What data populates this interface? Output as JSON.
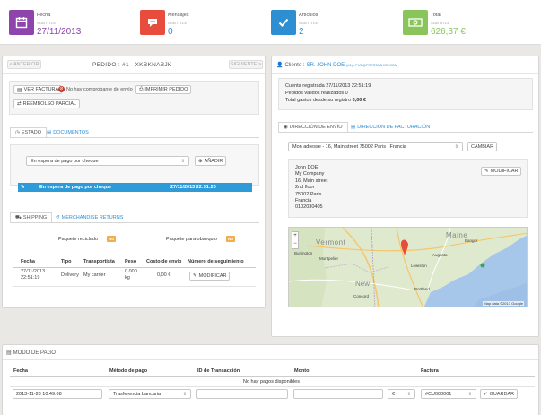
{
  "kpis": [
    {
      "label": "Fecha",
      "sublabel": "SUBTITLE",
      "value": "27/11/2013",
      "color": "#8e44ad",
      "value_color": "#8e44ad",
      "icon": "calendar-icon"
    },
    {
      "label": "Mensajes",
      "sublabel": "SUBTITLE",
      "value": "0",
      "color": "#e74c3c",
      "value_color": "#2d8ed1",
      "icon": "chat-icon"
    },
    {
      "label": "Artículos",
      "sublabel": "SUBTITLE",
      "value": "2",
      "color": "#2d8ed1",
      "value_color": "#2d8ed1",
      "icon": "check-icon"
    },
    {
      "label": "Total",
      "sublabel": "SUBTITLE",
      "value": "626,37 €",
      "color": "#8ac55b",
      "value_color": "#8ac55b",
      "icon": "money-icon"
    }
  ],
  "order": {
    "prev_label": "< ANTERIOR",
    "title": "PEDIDO : #1 - XKBKNABJK",
    "next_label": "SIGUIENTE >",
    "view_invoice": "VER FACTURA",
    "no_shipping_note": "No hay comprobante de envío",
    "print_order": "IMPRIMIR PEDIDO",
    "partial_refund": "REEMBOLSO PARCIAL",
    "tabs": {
      "status": "ESTADO",
      "documents": "DOCUMENTOS"
    },
    "status_select": "En espera de pago por cheque",
    "add_label": "AÑADIR",
    "history": {
      "status": "En espera de pago por cheque",
      "date": "27/11/2013 22:51:20"
    },
    "ship_tabs": {
      "shipping": "SHIPPING",
      "returns": "MERCHANDISE RETURNS"
    },
    "recycled_label": "Paquete reciclado",
    "recycled_value": "No",
    "gift_label": "Paquete para obsequio",
    "gift_value": "No",
    "ship_headers": [
      "Fecha",
      "Tipo",
      "Transportista",
      "Peso",
      "Costo de envío",
      "Número de seguimiento"
    ],
    "ship_row": {
      "date": "27/11/2013",
      "time": "22:51:19",
      "type": "Delivery",
      "carrier": "My carrier",
      "weight": "0.000",
      "weight_unit": "kg",
      "cost": "0,00 €",
      "modify": "MODIFICAR"
    }
  },
  "customer": {
    "label": "Cliente :",
    "name": "SR. JOHN DOE",
    "email": "(#1) - PUB@PRESTASHOP.COM",
    "registered": "Cuenta registrada 27/11/2013 22:51:19",
    "valid_orders": "Pedidos válidos realizados 0",
    "total_spent_label": "Total gastos desde su registro",
    "total_spent": "0,00 €",
    "addr_tabs": {
      "shipping": "DIRECCIÓN DE ENVÍO",
      "billing": "DIRECCIÓN DE FACTURACIÓN"
    },
    "address_select": "Mon adresse - 16, Main street 75002 Paris , Francia",
    "change_label": "CAMBIAR",
    "address_lines": [
      "John DOE",
      "My Company",
      "16, Main street",
      "2nd floor",
      "75002 Paris",
      "Francia",
      "0102030405"
    ],
    "modify_label": "MODIFICAR",
    "map": {
      "credit": "Map data ©2013 Google",
      "labels": [
        "Vermont",
        "Maine",
        "Lewiston",
        "Augusta",
        "Bangor",
        "Portland",
        "Montpelier",
        "Burlington",
        "Concord",
        "New"
      ]
    }
  },
  "payment": {
    "title": "MODO DE PAGO",
    "headers": [
      "Fecha",
      "Método de pago",
      "ID de Transacción",
      "Monto",
      "Factura"
    ],
    "empty": "No hay pagos disponibles",
    "date_value": "2013-11-28 10:49:08",
    "method_value": "Trasferencia bancaria",
    "currency": "€",
    "invoice": "#CU000001",
    "save_label": "GUARDAR"
  }
}
